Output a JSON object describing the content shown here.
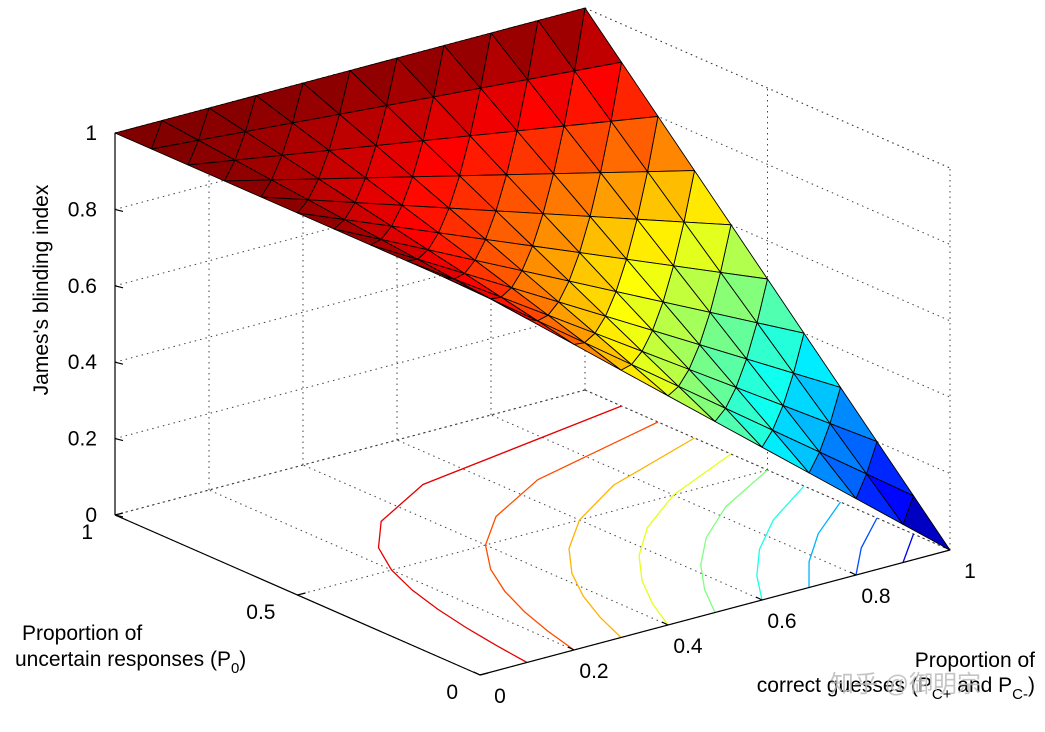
{
  "chart_data": {
    "type": "surface3d",
    "zlabel": "James's blinding index",
    "ylabel": {
      "line1": "Proportion of",
      "line2": "uncertain responses (P",
      "sub": "0",
      "end": ")"
    },
    "xlabel": {
      "line1": "Proportion of",
      "line2": "correct guesses (P",
      "sub1": "C+",
      "mid": " and P",
      "sub2": "C-",
      "end": ")"
    },
    "watermark": "知乎 @御明宗",
    "x": [
      0,
      0.1,
      0.2,
      0.3,
      0.4,
      0.5,
      0.6,
      0.7,
      0.8,
      0.9,
      1
    ],
    "y": [
      0,
      0.1,
      0.2,
      0.3,
      0.4,
      0.5,
      0.6,
      0.7,
      0.8,
      0.9,
      1
    ],
    "z": [
      [
        1,
        0.9,
        0.8,
        0.7,
        0.6,
        0.5,
        0.4,
        0.3,
        0.2,
        0.1,
        0
      ],
      [
        1,
        0.91,
        0.82,
        0.73,
        0.64,
        0.55,
        0.46,
        0.37,
        0.28,
        0.19,
        0.1
      ],
      [
        1,
        0.92,
        0.84,
        0.76,
        0.68,
        0.6,
        0.52,
        0.44,
        0.36,
        0.28,
        0.2
      ],
      [
        1,
        0.93,
        0.86,
        0.79,
        0.72,
        0.65,
        0.58,
        0.51,
        0.44,
        0.37,
        0.3
      ],
      [
        1,
        0.94,
        0.88,
        0.82,
        0.76,
        0.7,
        0.64,
        0.58,
        0.52,
        0.46,
        0.4
      ],
      [
        1,
        0.95,
        0.9,
        0.85,
        0.8,
        0.75,
        0.7,
        0.65,
        0.6,
        0.55,
        0.5
      ],
      [
        1,
        0.96,
        0.92,
        0.88,
        0.84,
        0.8,
        0.76,
        0.72,
        0.68,
        0.64,
        0.6
      ],
      [
        1,
        0.97,
        0.94,
        0.91,
        0.88,
        0.85,
        0.82,
        0.79,
        0.76,
        0.73,
        0.7
      ],
      [
        1,
        0.98,
        0.96,
        0.94,
        0.92,
        0.9,
        0.88,
        0.86,
        0.84,
        0.82,
        0.8
      ],
      [
        1,
        0.99,
        0.98,
        0.97,
        0.96,
        0.95,
        0.94,
        0.93,
        0.92,
        0.91,
        0.9
      ],
      [
        1,
        1,
        1,
        1,
        1,
        1,
        1,
        1,
        1,
        1,
        1
      ]
    ],
    "contour_levels": [
      0.1,
      0.2,
      0.3,
      0.4,
      0.5,
      0.6,
      0.7,
      0.8,
      0.9
    ],
    "colormap": "jet",
    "xlim": [
      0,
      1
    ],
    "ylim": [
      0,
      1
    ],
    "zlim": [
      0,
      1
    ],
    "xticks": [
      0,
      0.2,
      0.4,
      0.6,
      0.8,
      1
    ],
    "yticks": [
      0,
      0.5,
      1
    ],
    "zticks": [
      0,
      0.2,
      0.4,
      0.6,
      0.8,
      1
    ],
    "grid": true
  }
}
